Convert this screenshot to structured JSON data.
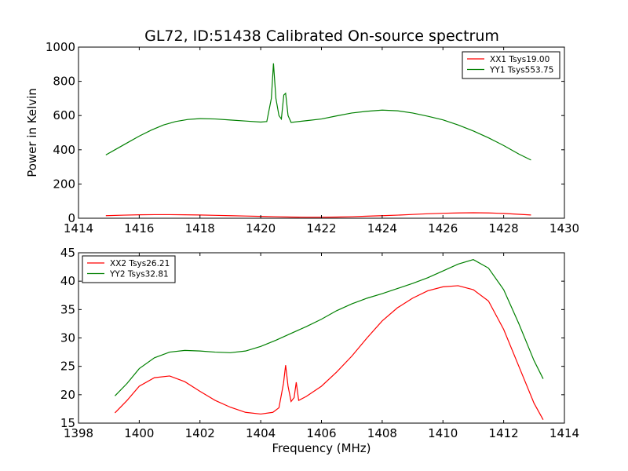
{
  "title": "GL72, ID:51438 Calibrated On-source spectrum",
  "chart_data": [
    {
      "type": "line",
      "xlim": [
        1414,
        1430
      ],
      "ylim": [
        0,
        1000
      ],
      "xticks": [
        "1414",
        "1416",
        "1418",
        "1420",
        "1422",
        "1424",
        "1426",
        "1428",
        "1430"
      ],
      "yticks": [
        "0",
        "200",
        "400",
        "600",
        "800",
        "1000"
      ],
      "xlabel": "",
      "ylabel": "Power in Kelvin",
      "legend_position": "top-right",
      "series": [
        {
          "name": "XX1 Tsys19.00",
          "color": "#ff0000",
          "x": [
            1414.9,
            1415.5,
            1416.0,
            1416.5,
            1417.0,
            1417.5,
            1418.0,
            1418.5,
            1419.0,
            1419.5,
            1420.0,
            1420.5,
            1421.0,
            1421.5,
            1422.0,
            1422.5,
            1423.0,
            1423.5,
            1424.0,
            1424.5,
            1425.0,
            1425.5,
            1426.0,
            1426.5,
            1427.0,
            1427.5,
            1428.0,
            1428.5,
            1428.9
          ],
          "y": [
            15,
            18,
            20,
            21,
            21,
            20,
            19,
            17,
            15,
            13,
            11,
            9,
            7,
            6,
            6,
            7,
            9,
            12,
            15,
            18,
            22,
            26,
            29,
            31,
            32,
            31,
            28,
            23,
            19
          ]
        },
        {
          "name": "YY1 Tsys553.75",
          "color": "#008000",
          "x": [
            1414.9,
            1415.2,
            1415.6,
            1416.0,
            1416.4,
            1416.8,
            1417.2,
            1417.6,
            1418.0,
            1418.5,
            1419.0,
            1419.5,
            1420.0,
            1420.2,
            1420.35,
            1420.42,
            1420.5,
            1420.6,
            1420.68,
            1420.76,
            1420.82,
            1420.9,
            1421.0,
            1421.5,
            1422.0,
            1422.5,
            1423.0,
            1423.5,
            1424.0,
            1424.5,
            1425.0,
            1425.5,
            1426.0,
            1426.5,
            1427.0,
            1427.5,
            1428.0,
            1428.5,
            1428.9
          ],
          "y": [
            370,
            400,
            440,
            480,
            515,
            545,
            565,
            577,
            582,
            580,
            574,
            568,
            562,
            565,
            700,
            905,
            700,
            600,
            580,
            720,
            730,
            600,
            560,
            570,
            580,
            598,
            615,
            625,
            632,
            628,
            615,
            596,
            575,
            545,
            510,
            470,
            425,
            375,
            340
          ]
        }
      ]
    },
    {
      "type": "line",
      "xlim": [
        1398,
        1414
      ],
      "ylim": [
        15,
        45
      ],
      "xticks": [
        "1398",
        "1400",
        "1402",
        "1404",
        "1406",
        "1408",
        "1410",
        "1412",
        "1414"
      ],
      "yticks": [
        "15",
        "20",
        "25",
        "30",
        "35",
        "40",
        "45"
      ],
      "xlabel": "Frequency (MHz)",
      "ylabel": "",
      "legend_position": "top-left",
      "series": [
        {
          "name": "XX2 Tsys26.21",
          "color": "#ff0000",
          "x": [
            1399.2,
            1399.6,
            1400.0,
            1400.5,
            1401.0,
            1401.5,
            1402.0,
            1402.5,
            1403.0,
            1403.5,
            1404.0,
            1404.4,
            1404.6,
            1404.75,
            1404.82,
            1404.9,
            1405.0,
            1405.1,
            1405.17,
            1405.25,
            1405.5,
            1406.0,
            1406.5,
            1407.0,
            1407.5,
            1408.0,
            1408.5,
            1409.0,
            1409.5,
            1410.0,
            1410.5,
            1411.0,
            1411.5,
            1412.0,
            1412.5,
            1413.0,
            1413.3
          ],
          "y": [
            16.8,
            19.0,
            21.5,
            23.0,
            23.3,
            22.3,
            20.6,
            19.0,
            17.8,
            16.9,
            16.6,
            16.9,
            17.7,
            22.0,
            25.2,
            21.5,
            18.8,
            19.5,
            22.2,
            19.0,
            19.7,
            21.5,
            24.0,
            26.8,
            30.0,
            33.0,
            35.3,
            37.0,
            38.3,
            39.0,
            39.2,
            38.5,
            36.5,
            31.5,
            25.0,
            18.5,
            15.6
          ]
        },
        {
          "name": "YY2 Tsys32.81",
          "color": "#008000",
          "x": [
            1399.2,
            1399.6,
            1400.0,
            1400.5,
            1401.0,
            1401.5,
            1402.0,
            1402.5,
            1403.0,
            1403.5,
            1404.0,
            1404.5,
            1405.0,
            1405.5,
            1406.0,
            1406.5,
            1407.0,
            1407.5,
            1408.0,
            1408.5,
            1409.0,
            1409.5,
            1410.0,
            1410.5,
            1411.0,
            1411.5,
            1412.0,
            1412.5,
            1413.0,
            1413.3
          ],
          "y": [
            19.8,
            22.0,
            24.6,
            26.5,
            27.5,
            27.8,
            27.7,
            27.5,
            27.4,
            27.7,
            28.5,
            29.6,
            30.8,
            32.0,
            33.3,
            34.8,
            36.0,
            37.0,
            37.8,
            38.7,
            39.6,
            40.6,
            41.8,
            43.0,
            43.8,
            42.3,
            38.5,
            32.5,
            26.0,
            22.8
          ]
        }
      ]
    }
  ]
}
